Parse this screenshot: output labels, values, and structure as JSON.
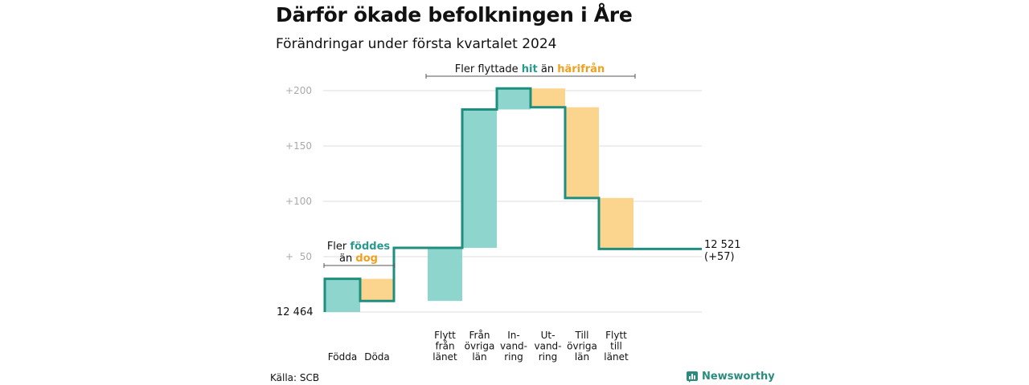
{
  "title": "Därför ökade befolkningen i Åre",
  "subtitle": "Förändringar under första kvartalet 2024",
  "source": "Källa: SCB",
  "brand": {
    "name": "Newsworthy",
    "icon": "bar-chart-icon"
  },
  "colors": {
    "increase": "#8dd5cd",
    "decrease": "#fbd58e",
    "line": "#1e8f7e",
    "accent_hit": "#2a9a8c",
    "accent_harifran": "#f0a020",
    "grid": "#dddddd"
  },
  "annotations": {
    "born": {
      "line1": "Fler",
      "line1_accent": "föddes",
      "line2": "än",
      "line2_accent": "dog"
    },
    "moved": {
      "prefix": "Fler flyttade",
      "accent1": "hit",
      "middle": "än",
      "accent2": "härifrån"
    }
  },
  "chart_data": {
    "type": "waterfall",
    "start": {
      "label": "12  464",
      "value": 12464
    },
    "end": {
      "label": "12 521",
      "change_label": "(+57)",
      "value": 12521
    },
    "y_ticks": [
      "+200",
      "+150",
      "+100",
      "+  50"
    ],
    "y_tick_values": [
      200,
      150,
      100,
      50
    ],
    "ylim": [
      0,
      200
    ],
    "steps": [
      {
        "label": [
          "Födda"
        ],
        "change": 30,
        "kind": "increase"
      },
      {
        "label": [
          "Döda"
        ],
        "change": -20,
        "kind": "decrease"
      },
      {
        "label": [
          "Flytt",
          "från",
          "länet"
        ],
        "change": 48,
        "kind": "increase"
      },
      {
        "label": [
          "Från",
          "övriga",
          "län"
        ],
        "change": 125,
        "kind": "increase"
      },
      {
        "label": [
          "In-",
          "vand-",
          "ring"
        ],
        "change": 19,
        "kind": "increase"
      },
      {
        "label": [
          "Ut-",
          "vand-",
          "ring"
        ],
        "change": -17,
        "kind": "decrease"
      },
      {
        "label": [
          "Till",
          "övriga",
          "län"
        ],
        "change": -82,
        "kind": "decrease"
      },
      {
        "label": [
          "Flytt",
          "till",
          "länet"
        ],
        "change": -46,
        "kind": "decrease"
      }
    ]
  }
}
